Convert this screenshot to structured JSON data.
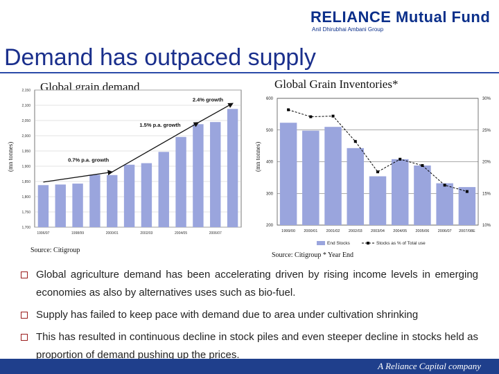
{
  "header": {
    "logo_text": "RELIANCE Mutual Fund",
    "logo_sub": "Anil Dhirubhai Ambani Group"
  },
  "slide_title": "Demand has outpaced supply",
  "chart_data": [
    {
      "type": "bar",
      "title": "Global grain demand",
      "ylabel": "(mn tonnes)",
      "source": "Source: Citigroup",
      "x_tick_labels": [
        "1996/97",
        "1998/99",
        "2000/01",
        "2002/03",
        "2004/05",
        "2006/07"
      ],
      "y_ticks": [
        1700,
        1750,
        1800,
        1850,
        1900,
        1950,
        2000,
        2050,
        2100,
        2150
      ],
      "y_tick_labels": [
        "1,700",
        "1,750",
        "1,800",
        "1,850",
        "1,900",
        "1,950",
        "2,000",
        "2,050",
        "2,100",
        "2,150"
      ],
      "ylim": [
        1700,
        2150
      ],
      "values": [
        1838,
        1840,
        1843,
        1872,
        1871,
        1905,
        1910,
        1947,
        1996,
        2038,
        2045,
        2088
      ],
      "annotations": [
        "0.7% p.a. growth",
        "1.5% p.a. growth",
        "2.4% growth"
      ],
      "grid": true
    },
    {
      "type": "bar+line",
      "title": "Global Grain Inventories*",
      "ylabel": "(mn tonnes)",
      "source": "Source: Citigroup * Year End",
      "categories": [
        "1999/00",
        "2000/01",
        "2001/02",
        "2002/03",
        "2003/04",
        "2004/05",
        "2005/06",
        "2006/07",
        "2007/08E"
      ],
      "y_ticks": [
        200,
        300,
        400,
        500,
        600
      ],
      "y_tick_labels": [
        "200",
        "300",
        "400",
        "500",
        "600"
      ],
      "y2_ticks": [
        10,
        15,
        20,
        25,
        30
      ],
      "y2_tick_labels": [
        "10%",
        "15%",
        "20%",
        "25%",
        "30%"
      ],
      "ylim": [
        200,
        600
      ],
      "y2lim": [
        10,
        30
      ],
      "series": [
        {
          "name": "End Stocks",
          "type": "bar",
          "axis": "left",
          "color": "#9aa5dd",
          "values": [
            523,
            498,
            510,
            443,
            354,
            408,
            388,
            332,
            320
          ]
        },
        {
          "name": "Stocks as % of Total use",
          "type": "line",
          "axis": "right",
          "color": "#000000",
          "values": [
            28.2,
            27.1,
            27.2,
            23.2,
            18.4,
            20.4,
            19.4,
            16.3,
            15.3
          ]
        }
      ],
      "legend_position": "bottom",
      "grid": true
    }
  ],
  "bullets": [
    "Global agriculture demand has been accelerating driven by rising income levels in emerging economies as also by alternatives uses such as bio-fuel.",
    "Supply has failed to keep pace with demand due to area under cultivation shrinking",
    "This has resulted in continuous decline in stock piles and even steeper decline in stocks held as proportion of demand pushing up the prices."
  ],
  "footer": "A Reliance Capital company",
  "colors": {
    "title_blue": "#1a2f8c",
    "footer_bg": "#1f3f8c",
    "demand_bar": "#9aa5dd",
    "inventory_bar": "#9aa5dd"
  }
}
